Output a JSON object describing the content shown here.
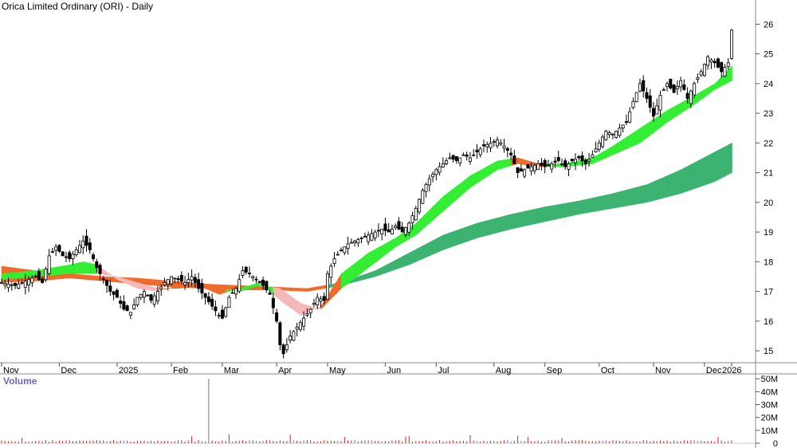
{
  "chart_data": {
    "type": "candlestick",
    "title": "Orica Limited Ordinary (ORI) - Daily",
    "volume_title": "Volume",
    "y_ticks": [
      15,
      16,
      17,
      18,
      19,
      20,
      21,
      22,
      23,
      24,
      25,
      26
    ],
    "y_range": [
      14.6,
      26.6
    ],
    "volume_ticks": [
      "0",
      "10M",
      "20M",
      "30M",
      "40M",
      "50M"
    ],
    "volume_tick_values": [
      0,
      10,
      20,
      30,
      40,
      50
    ],
    "volume_range": [
      0,
      52
    ],
    "x_labels": [
      "Nov",
      "Dec",
      "2025",
      "Feb",
      "Mar",
      "Apr",
      "May",
      "Jun",
      "Jul",
      "Aug",
      "Sep",
      "Oct",
      "Nov",
      "Dec",
      "2026"
    ],
    "close_series": [
      [
        0,
        17.3
      ],
      [
        4,
        17.2
      ],
      [
        8,
        17.4
      ],
      [
        10,
        17.5
      ],
      [
        12,
        17.3
      ],
      [
        14,
        18.2
      ],
      [
        16,
        18.5
      ],
      [
        18,
        18.2
      ],
      [
        20,
        18.1
      ],
      [
        22,
        18.4
      ],
      [
        24,
        18.7
      ],
      [
        26,
        18.4
      ],
      [
        28,
        17.8
      ],
      [
        30,
        17.4
      ],
      [
        32,
        17.0
      ],
      [
        34,
        16.8
      ],
      [
        36,
        16.4
      ],
      [
        38,
        16.3
      ],
      [
        40,
        16.8
      ],
      [
        42,
        17.0
      ],
      [
        44,
        16.7
      ],
      [
        46,
        17.0
      ],
      [
        48,
        17.3
      ],
      [
        50,
        17.5
      ],
      [
        52,
        17.4
      ],
      [
        54,
        17.3
      ],
      [
        56,
        17.5
      ],
      [
        58,
        17.1
      ],
      [
        60,
        16.8
      ],
      [
        62,
        16.5
      ],
      [
        64,
        16.2
      ],
      [
        65,
        16.1
      ],
      [
        67,
        16.8
      ],
      [
        69,
        17.1
      ],
      [
        71,
        17.7
      ],
      [
        73,
        17.6
      ],
      [
        75,
        17.4
      ],
      [
        77,
        17.2
      ],
      [
        79,
        16.9
      ],
      [
        81,
        16.0
      ],
      [
        82,
        15.2
      ],
      [
        83,
        14.9
      ],
      [
        85,
        15.5
      ],
      [
        87,
        15.8
      ],
      [
        89,
        16.1
      ],
      [
        91,
        16.4
      ],
      [
        93,
        16.8
      ],
      [
        95,
        16.7
      ],
      [
        96,
        17.6
      ],
      [
        98,
        18.1
      ],
      [
        100,
        18.4
      ],
      [
        102,
        18.6
      ],
      [
        104,
        18.7
      ],
      [
        106,
        18.8
      ],
      [
        108,
        18.9
      ],
      [
        110,
        19.0
      ],
      [
        112,
        19.1
      ],
      [
        114,
        19.0
      ],
      [
        116,
        19.2
      ],
      [
        118,
        19.0
      ],
      [
        120,
        19.3
      ],
      [
        122,
        19.8
      ],
      [
        124,
        20.4
      ],
      [
        126,
        20.8
      ],
      [
        128,
        21.1
      ],
      [
        130,
        21.3
      ],
      [
        132,
        21.5
      ],
      [
        134,
        21.4
      ],
      [
        136,
        21.6
      ],
      [
        138,
        21.5
      ],
      [
        140,
        21.7
      ],
      [
        142,
        21.9
      ],
      [
        144,
        22.0
      ],
      [
        146,
        22.1
      ],
      [
        148,
        21.9
      ],
      [
        150,
        21.6
      ],
      [
        152,
        21.0
      ],
      [
        154,
        21.1
      ],
      [
        156,
        21.2
      ],
      [
        158,
        21.3
      ],
      [
        160,
        21.2
      ],
      [
        162,
        21.3
      ],
      [
        164,
        21.4
      ],
      [
        166,
        21.2
      ],
      [
        168,
        21.4
      ],
      [
        170,
        21.5
      ],
      [
        172,
        21.3
      ],
      [
        174,
        21.6
      ],
      [
        176,
        22.0
      ],
      [
        178,
        22.4
      ],
      [
        180,
        22.3
      ],
      [
        182,
        22.5
      ],
      [
        184,
        22.7
      ],
      [
        186,
        23.4
      ],
      [
        188,
        24.0
      ],
      [
        190,
        23.5
      ],
      [
        192,
        22.9
      ],
      [
        194,
        23.6
      ],
      [
        196,
        24.0
      ],
      [
        198,
        23.7
      ],
      [
        200,
        24.1
      ],
      [
        202,
        23.5
      ],
      [
        204,
        24.0
      ],
      [
        206,
        24.4
      ],
      [
        208,
        24.9
      ],
      [
        210,
        24.7
      ],
      [
        212,
        24.4
      ],
      [
        214,
        24.7
      ],
      [
        215,
        25.8
      ]
    ],
    "ma_fast_upper": [
      [
        0,
        17.6
      ],
      [
        10,
        17.7
      ],
      [
        20,
        17.9
      ],
      [
        24,
        18.0
      ],
      [
        28,
        17.9
      ],
      [
        34,
        17.4
      ],
      [
        40,
        17.1
      ],
      [
        46,
        17.0
      ],
      [
        52,
        17.2
      ],
      [
        58,
        17.2
      ],
      [
        64,
        16.9
      ],
      [
        70,
        17.1
      ],
      [
        76,
        17.3
      ],
      [
        82,
        16.7
      ],
      [
        88,
        16.2
      ],
      [
        94,
        16.5
      ],
      [
        100,
        17.6
      ],
      [
        108,
        18.3
      ],
      [
        116,
        18.8
      ],
      [
        122,
        19.3
      ],
      [
        130,
        20.2
      ],
      [
        138,
        20.9
      ],
      [
        146,
        21.4
      ],
      [
        152,
        21.5
      ],
      [
        158,
        21.3
      ],
      [
        166,
        21.3
      ],
      [
        174,
        21.5
      ],
      [
        180,
        21.9
      ],
      [
        188,
        22.5
      ],
      [
        196,
        23.1
      ],
      [
        204,
        23.6
      ],
      [
        210,
        24.0
      ],
      [
        215,
        24.6
      ]
    ],
    "ma_fast_lower": [
      [
        0,
        17.4
      ],
      [
        10,
        17.5
      ],
      [
        20,
        17.6
      ],
      [
        24,
        17.6
      ],
      [
        28,
        17.6
      ],
      [
        34,
        17.5
      ],
      [
        40,
        17.3
      ],
      [
        46,
        17.1
      ],
      [
        52,
        17.1
      ],
      [
        58,
        17.2
      ],
      [
        64,
        17.1
      ],
      [
        70,
        17.0
      ],
      [
        76,
        17.2
      ],
      [
        82,
        17.1
      ],
      [
        88,
        16.6
      ],
      [
        94,
        16.4
      ],
      [
        100,
        17.1
      ],
      [
        108,
        17.8
      ],
      [
        116,
        18.5
      ],
      [
        122,
        18.9
      ],
      [
        130,
        19.7
      ],
      [
        138,
        20.5
      ],
      [
        146,
        21.1
      ],
      [
        152,
        21.3
      ],
      [
        158,
        21.2
      ],
      [
        166,
        21.2
      ],
      [
        174,
        21.3
      ],
      [
        180,
        21.6
      ],
      [
        188,
        22.0
      ],
      [
        196,
        22.7
      ],
      [
        204,
        23.3
      ],
      [
        210,
        23.8
      ],
      [
        215,
        24.1
      ]
    ],
    "ma_slow_upper": [
      [
        0,
        17.85
      ],
      [
        10,
        17.7
      ],
      [
        20,
        17.6
      ],
      [
        30,
        17.5
      ],
      [
        40,
        17.45
      ],
      [
        50,
        17.35
      ],
      [
        60,
        17.25
      ],
      [
        70,
        17.2
      ],
      [
        80,
        17.15
      ],
      [
        90,
        17.1
      ],
      [
        100,
        17.3
      ],
      [
        110,
        17.7
      ],
      [
        120,
        18.3
      ],
      [
        130,
        18.9
      ],
      [
        140,
        19.3
      ],
      [
        150,
        19.6
      ],
      [
        160,
        19.85
      ],
      [
        170,
        20.05
      ],
      [
        180,
        20.3
      ],
      [
        190,
        20.6
      ],
      [
        200,
        21.1
      ],
      [
        210,
        21.7
      ],
      [
        215,
        22.0
      ]
    ],
    "ma_slow_lower": [
      [
        0,
        17.3
      ],
      [
        10,
        17.35
      ],
      [
        20,
        17.45
      ],
      [
        30,
        17.35
      ],
      [
        40,
        17.25
      ],
      [
        50,
        17.15
      ],
      [
        60,
        17.1
      ],
      [
        70,
        17.05
      ],
      [
        80,
        17.05
      ],
      [
        90,
        17.0
      ],
      [
        100,
        17.2
      ],
      [
        110,
        17.5
      ],
      [
        120,
        17.9
      ],
      [
        130,
        18.4
      ],
      [
        140,
        18.8
      ],
      [
        150,
        19.1
      ],
      [
        160,
        19.35
      ],
      [
        170,
        19.6
      ],
      [
        180,
        19.8
      ],
      [
        190,
        20.0
      ],
      [
        200,
        20.3
      ],
      [
        210,
        20.7
      ],
      [
        215,
        21.0
      ]
    ],
    "volume_spike_index": 61,
    "volume_spike_value": 50,
    "colors": {
      "ma_up": "#33ee33",
      "ma_down": "#f26a2a",
      "ma_down_light": "#f5b8b8",
      "ma_slow": "#3cb371",
      "candle": "#000000",
      "volume_bar": "#c62828",
      "volume_spike": "#6b6bd6",
      "grid": "#b0b0b0"
    }
  }
}
